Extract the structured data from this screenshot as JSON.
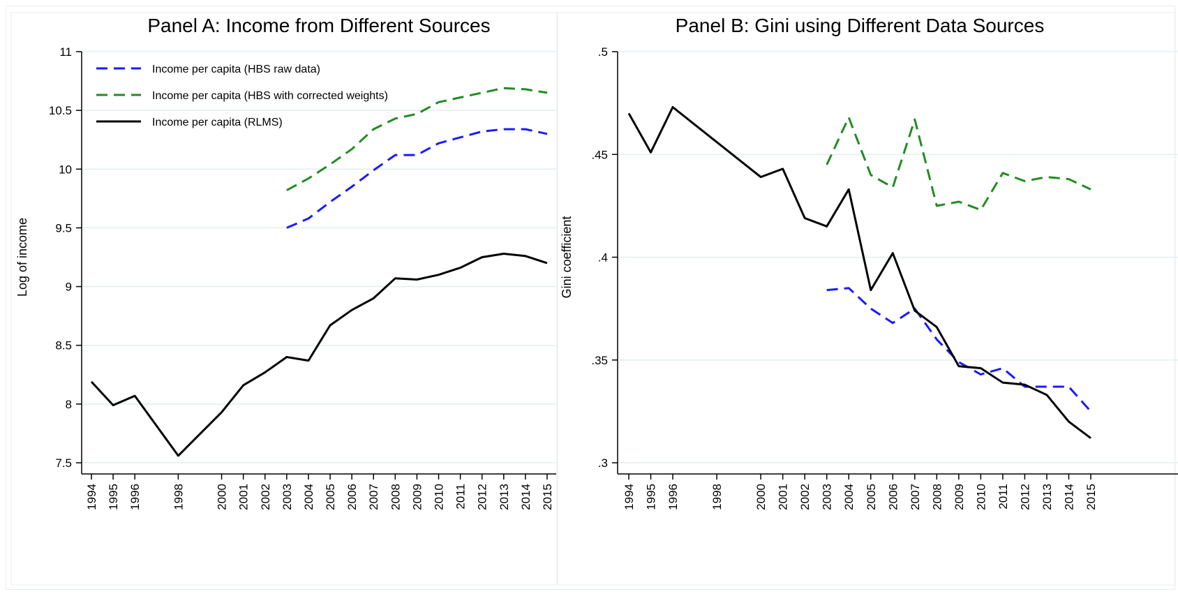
{
  "colors": {
    "hbs_raw": "#1a1aff",
    "hbs_corrected": "#228b22",
    "rlms": "#000000",
    "grid": "#e3eef0",
    "panel_border": "#e8eef0"
  },
  "chart_data": [
    {
      "type": "line",
      "title": "Panel A: Income from Different Sources",
      "xlabel": "",
      "ylabel": "Log of income",
      "ylim": [
        7.5,
        11
      ],
      "yticks": [
        7.5,
        8,
        8.5,
        9,
        9.5,
        10,
        10.5,
        11
      ],
      "ytick_labels": [
        "7.5",
        "8",
        "8.5",
        "9",
        "9.5",
        "10",
        "10.5",
        "11"
      ],
      "xticks": [
        1994,
        1995,
        1996,
        1998,
        2000,
        2001,
        2002,
        2003,
        2004,
        2005,
        2006,
        2007,
        2008,
        2009,
        2010,
        2011,
        2012,
        2013,
        2014,
        2015
      ],
      "xtick_labels": [
        "1994",
        "1995",
        "1996",
        "1998",
        "2000",
        "2001",
        "2002",
        "2003",
        "2004",
        "2005",
        "2006",
        "2007",
        "2008",
        "2009",
        "2010",
        "2011",
        "2012",
        "2013",
        "2014",
        "2015"
      ],
      "grid": true,
      "legend_position": "top-left",
      "series": [
        {
          "name": "Income per capita (HBS raw data)",
          "style": "dashed",
          "color": "#1a1aff",
          "x": [
            2003,
            2004,
            2005,
            2006,
            2007,
            2008,
            2009,
            2010,
            2011,
            2012,
            2013,
            2014,
            2015
          ],
          "y": [
            9.5,
            9.58,
            9.72,
            9.85,
            9.99,
            10.12,
            10.12,
            10.22,
            10.27,
            10.32,
            10.34,
            10.34,
            10.3
          ]
        },
        {
          "name": "Income per capita (HBS with corrected weights)",
          "style": "dashed",
          "color": "#228b22",
          "x": [
            2003,
            2004,
            2005,
            2006,
            2007,
            2008,
            2009,
            2010,
            2011,
            2012,
            2013,
            2014,
            2015
          ],
          "y": [
            9.82,
            9.92,
            10.04,
            10.17,
            10.34,
            10.43,
            10.47,
            10.57,
            10.61,
            10.65,
            10.69,
            10.68,
            10.65
          ]
        },
        {
          "name": "Income per capita (RLMS)",
          "style": "solid",
          "color": "#000000",
          "x": [
            1994,
            1995,
            1996,
            1998,
            2000,
            2001,
            2002,
            2003,
            2004,
            2005,
            2006,
            2007,
            2008,
            2009,
            2010,
            2011,
            2012,
            2013,
            2014,
            2015
          ],
          "y": [
            8.19,
            7.99,
            8.07,
            7.56,
            7.93,
            8.16,
            8.27,
            8.4,
            8.37,
            8.67,
            8.8,
            8.9,
            9.07,
            9.06,
            9.1,
            9.16,
            9.25,
            9.28,
            9.26,
            9.2
          ]
        }
      ]
    },
    {
      "type": "line",
      "title": "Panel B: Gini using Different Data Sources",
      "xlabel": "",
      "ylabel": "Gini coefficient",
      "ylim": [
        0.3,
        0.5
      ],
      "yticks": [
        0.3,
        0.35,
        0.4,
        0.45,
        0.5
      ],
      "ytick_labels": [
        ".3",
        ".35",
        ".4",
        ".45",
        ".5"
      ],
      "xticks": [
        1994,
        1995,
        1996,
        1998,
        2000,
        2001,
        2002,
        2003,
        2004,
        2005,
        2006,
        2007,
        2008,
        2009,
        2010,
        2011,
        2012,
        2013,
        2014,
        2015
      ],
      "xtick_labels": [
        "1994",
        "1995",
        "1996",
        "1998",
        "2000",
        "2001",
        "2002",
        "2003",
        "2004",
        "2005",
        "2006",
        "2007",
        "2008",
        "2009",
        "2010",
        "2011",
        "2012",
        "2013",
        "2014",
        "2015"
      ],
      "grid": true,
      "series": [
        {
          "style": "dashed",
          "color": "#228b22",
          "x": [
            2003,
            2004,
            2005,
            2006,
            2007,
            2008,
            2009,
            2010,
            2011,
            2012,
            2013,
            2014,
            2015
          ],
          "y": [
            0.445,
            0.468,
            0.44,
            0.434,
            0.467,
            0.425,
            0.427,
            0.423,
            0.441,
            0.437,
            0.439,
            0.438,
            0.433
          ]
        },
        {
          "style": "dashed",
          "color": "#1a1aff",
          "x": [
            2003,
            2004,
            2005,
            2006,
            2007,
            2008,
            2009,
            2010,
            2011,
            2012,
            2013,
            2014,
            2015
          ],
          "y": [
            0.384,
            0.385,
            0.375,
            0.368,
            0.375,
            0.36,
            0.349,
            0.343,
            0.346,
            0.337,
            0.337,
            0.337,
            0.325
          ]
        },
        {
          "style": "solid",
          "color": "#000000",
          "x": [
            1994,
            1995,
            1996,
            1998,
            2000,
            2001,
            2002,
            2003,
            2004,
            2005,
            2006,
            2007,
            2008,
            2009,
            2010,
            2011,
            2012,
            2013,
            2014,
            2015
          ],
          "y": [
            0.47,
            0.451,
            0.473,
            0.456,
            0.439,
            0.443,
            0.419,
            0.415,
            0.433,
            0.384,
            0.402,
            0.374,
            0.366,
            0.347,
            0.346,
            0.339,
            0.338,
            0.333,
            0.32,
            0.312
          ]
        }
      ]
    }
  ]
}
